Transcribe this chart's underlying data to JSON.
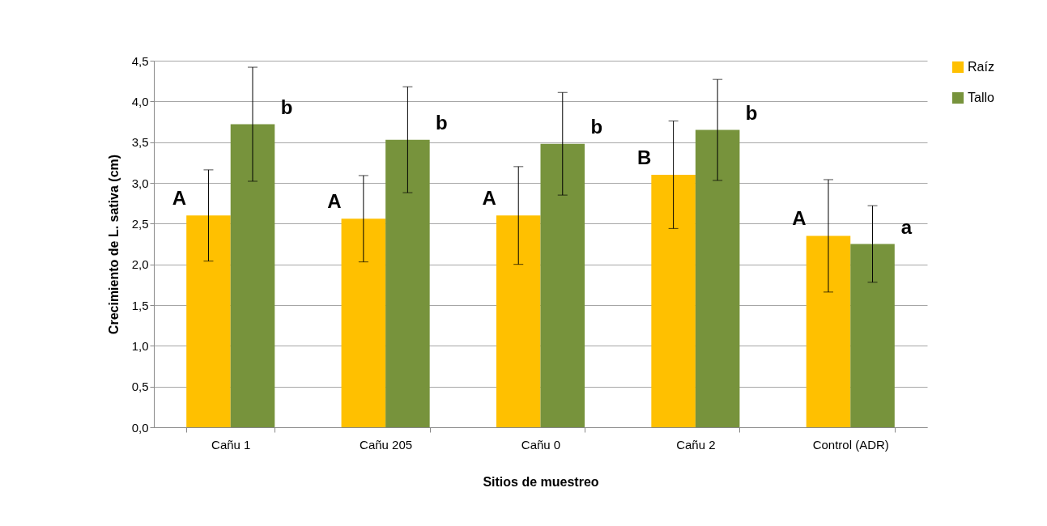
{
  "chart_data": {
    "type": "bar",
    "xlabel": "Sitios de muestreo",
    "ylabel": "Crecimiento de L. sativa (cm)",
    "categories": [
      "Cañu 1",
      "Cañu 205",
      "Cañu 0",
      "Cañu 2",
      "Control (ADR)"
    ],
    "series": [
      {
        "name": "Raíz",
        "color": "#ffc000",
        "values": [
          2.6,
          2.56,
          2.6,
          3.1,
          2.35
        ],
        "errors": [
          0.56,
          0.53,
          0.6,
          0.66,
          0.69
        ]
      },
      {
        "name": "Tallo",
        "color": "#77933c",
        "values": [
          3.72,
          3.53,
          3.48,
          3.65,
          2.25
        ],
        "errors": [
          0.7,
          0.65,
          0.63,
          0.62,
          0.47
        ]
      }
    ],
    "ylim": [
      0,
      4.5
    ],
    "yticks": [
      {
        "value": 0,
        "label": "0,0"
      },
      {
        "value": 0.5,
        "label": "0,5"
      },
      {
        "value": 1,
        "label": "1,0"
      },
      {
        "value": 1.5,
        "label": "1,5"
      },
      {
        "value": 2,
        "label": "2,0"
      },
      {
        "value": 2.5,
        "label": "2,5"
      },
      {
        "value": 3,
        "label": "3,0"
      },
      {
        "value": 3.5,
        "label": "3,5"
      },
      {
        "value": 4,
        "label": "4,0"
      },
      {
        "value": 4.5,
        "label": "4,5"
      }
    ],
    "grid": "y",
    "legend": "right",
    "annotations": [
      "A",
      "b",
      "A",
      "b",
      "A",
      "b",
      "B",
      "b",
      "A",
      "a"
    ]
  }
}
